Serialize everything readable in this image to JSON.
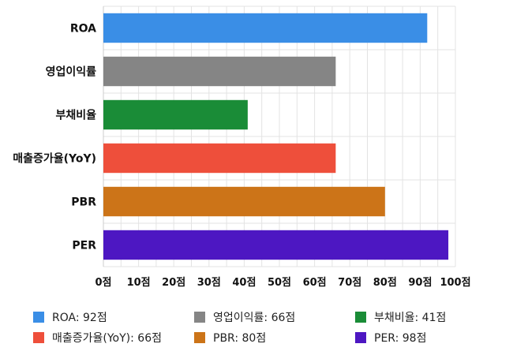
{
  "chart_data": {
    "type": "bar",
    "orientation": "horizontal",
    "categories": [
      "ROA",
      "영업이익률",
      "부채비율",
      "매출증가율(YoY)",
      "PBR",
      "PER"
    ],
    "values": [
      92,
      66,
      41,
      66,
      80,
      98
    ],
    "colors": [
      "#3a8ee6",
      "#858585",
      "#1a8c37",
      "#ee4f3b",
      "#cc7418",
      "#4d17c2"
    ],
    "xlim": [
      0,
      100
    ],
    "xticks": [
      0,
      10,
      20,
      30,
      40,
      50,
      60,
      70,
      80,
      90,
      100
    ],
    "tick_suffix": "점",
    "grid": true,
    "legend_position": "bottom",
    "legend": [
      {
        "label": "ROA: 92점",
        "color": "#3a8ee6"
      },
      {
        "label": "영업이익률: 66점",
        "color": "#858585"
      },
      {
        "label": "부채비율: 41점",
        "color": "#1a8c37"
      },
      {
        "label": "매출증가율(YoY): 66점",
        "color": "#ee4f3b"
      },
      {
        "label": "PBR: 80점",
        "color": "#cc7418"
      },
      {
        "label": "PER: 98점",
        "color": "#4d17c2"
      }
    ]
  }
}
